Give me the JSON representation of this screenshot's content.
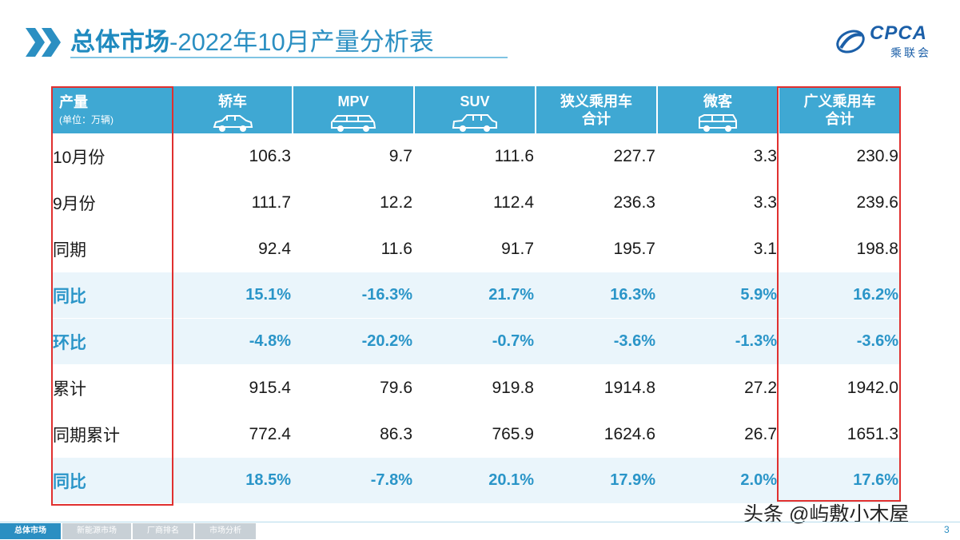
{
  "title": {
    "bold": "总体市场",
    "rest": "-2022年10月产量分析表"
  },
  "logo": {
    "text": "CPCA",
    "cn": "乘联会"
  },
  "table": {
    "header": {
      "first_label": "产量",
      "first_unit": "(单位：万辆)",
      "columns": [
        {
          "line1": "轿车",
          "line2": "",
          "icon": "sedan-icon"
        },
        {
          "line1": "MPV",
          "line2": "",
          "icon": "mpv-icon"
        },
        {
          "line1": "SUV",
          "line2": "",
          "icon": "suv-icon"
        },
        {
          "line1": "狭义乘用车",
          "line2": "合计",
          "icon": ""
        },
        {
          "line1": "微客",
          "line2": "",
          "icon": "minivan-icon"
        },
        {
          "line1": "广义乘用车",
          "line2": "合计",
          "icon": ""
        }
      ]
    },
    "rows": [
      {
        "label": "10月份",
        "values": [
          "106.3",
          "9.7",
          "111.6",
          "227.7",
          "3.3",
          "230.9"
        ],
        "type": "num"
      },
      {
        "label": "9月份",
        "values": [
          "111.7",
          "12.2",
          "112.4",
          "236.3",
          "3.3",
          "239.6"
        ],
        "type": "num"
      },
      {
        "label": "同期",
        "values": [
          "92.4",
          "11.6",
          "91.7",
          "195.7",
          "3.1",
          "198.8"
        ],
        "type": "num"
      },
      {
        "label": "同比",
        "values": [
          "15.1%",
          "-16.3%",
          "21.7%",
          "16.3%",
          "5.9%",
          "16.2%"
        ],
        "type": "pct"
      },
      {
        "label": "环比",
        "values": [
          "-4.8%",
          "-20.2%",
          "-0.7%",
          "-3.6%",
          "-1.3%",
          "-3.6%"
        ],
        "type": "pct"
      },
      {
        "label": "累计",
        "values": [
          "915.4",
          "79.6",
          "919.8",
          "1914.8",
          "27.2",
          "1942.0"
        ],
        "type": "num"
      },
      {
        "label": "同期累计",
        "values": [
          "772.4",
          "86.3",
          "765.9",
          "1624.6",
          "26.7",
          "1651.3"
        ],
        "type": "num"
      },
      {
        "label": "同比",
        "values": [
          "18.5%",
          "-7.8%",
          "20.1%",
          "17.9%",
          "2.0%",
          "17.6%"
        ],
        "type": "pct"
      }
    ]
  },
  "footer": {
    "tabs": [
      "总体市场",
      "新能源市场",
      "厂商排名",
      "市场分析"
    ],
    "active": 0,
    "page": "3"
  },
  "watermark": "头条 @屿敷小木屋",
  "colors": {
    "accent": "#2b8fc2",
    "header_bg": "#3fa8d3",
    "highlight": "#e0302f",
    "pct_text": "#2a95c8"
  }
}
